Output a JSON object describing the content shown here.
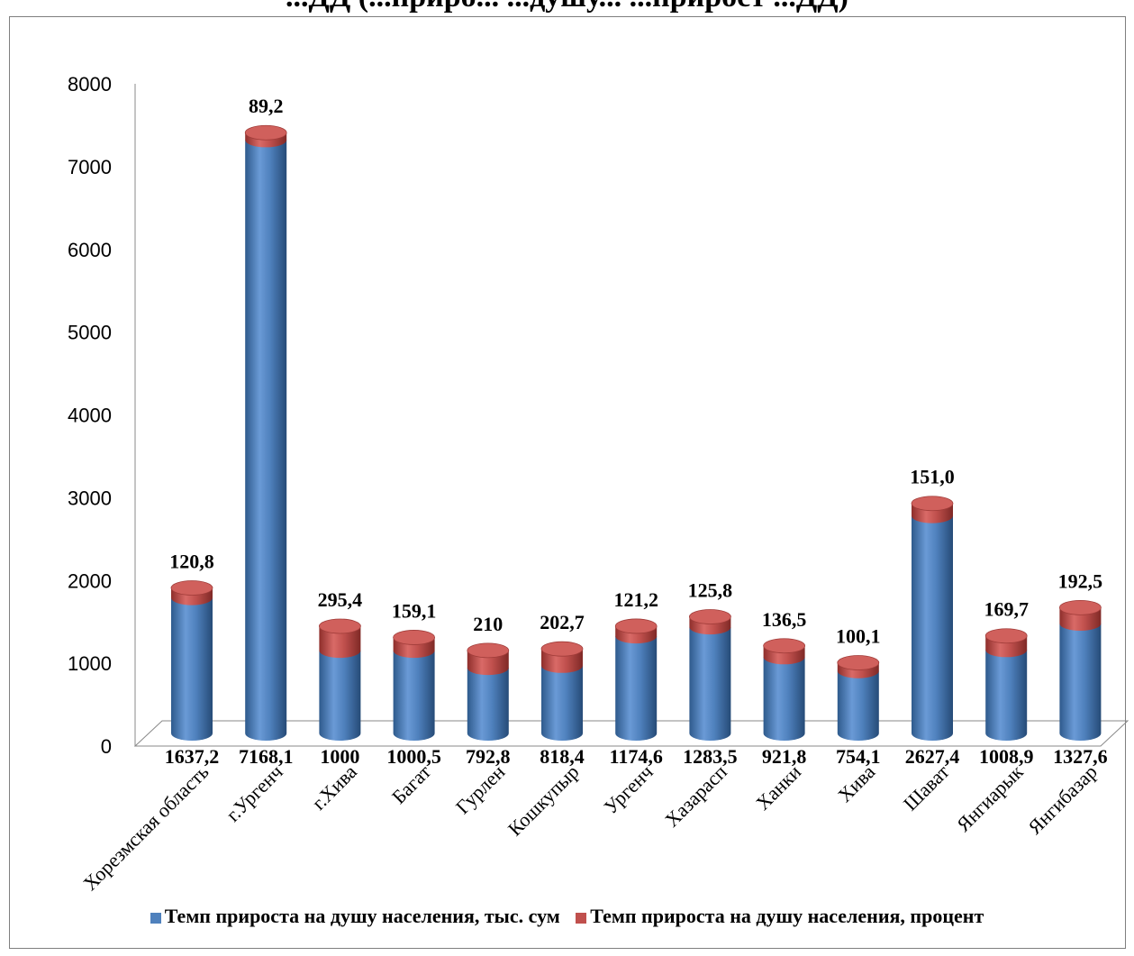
{
  "chart_data": {
    "type": "bar",
    "title": "...ДД (...приро... ...душу... ...прирост ...ДД)",
    "categories": [
      "Хорезмская область",
      "г.Ургенч",
      "г.Хива",
      "Багат",
      "Гурлен",
      "Кошкупыр",
      "Ургенч",
      "Хазарасп",
      "Ханки",
      "Хива",
      "Шават",
      "Янгиарык",
      "Янгибазар"
    ],
    "series": [
      {
        "name": "Темп прироста на душу населения, тыс. сум",
        "color": "#4F81BD",
        "values": [
          1637.2,
          7168.1,
          1000,
          1000.5,
          792.8,
          818.4,
          1174.6,
          1283.5,
          921.8,
          754.1,
          2627.4,
          1008.9,
          1327.6
        ],
        "labels": [
          "1637,2",
          "7168,1",
          "1000",
          "1000,5",
          "792,8",
          "818,4",
          "1174,6",
          "1283,5",
          "921,8",
          "754,1",
          "2627,4",
          "1008,9",
          "1327,6"
        ]
      },
      {
        "name": "Темп прироста на душу населения, процент",
        "color": "#C0504D",
        "values": [
          120.8,
          89.2,
          295.4,
          159.1,
          210,
          202.7,
          121.2,
          125.8,
          136.5,
          100.1,
          151.0,
          169.7,
          192.5
        ],
        "labels": [
          "120,8",
          "89,2",
          "295,4",
          "159,1",
          "210",
          "202,7",
          "121,2",
          "125,8",
          "136,5",
          "100,1",
          "151,0",
          "169,7",
          "192,5"
        ]
      }
    ],
    "stacked": true,
    "ylim": [
      0,
      8000
    ],
    "yticks": [
      "0",
      "1000",
      "2000",
      "3000",
      "4000",
      "5000",
      "6000",
      "7000",
      "8000"
    ],
    "xlabel": "",
    "ylabel": "",
    "grid": false,
    "legend": "bottom"
  }
}
